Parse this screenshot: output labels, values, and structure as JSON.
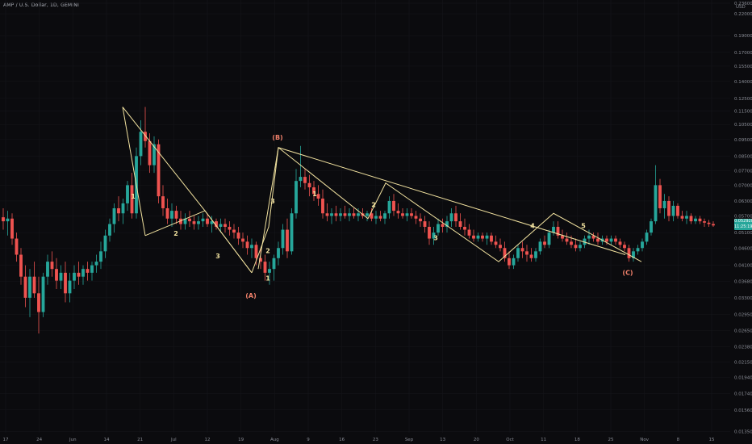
{
  "header": {
    "symbol_line": "AMP / U.S. Dollar, 1D, GEMINI"
  },
  "price_axis": {
    "currency": "USD",
    "current_price": "0.052920",
    "countdown": "11:25:19"
  },
  "colors": {
    "background": "#0b0b0e",
    "up": "#26a69a",
    "down": "#ef5350",
    "wave_line": "#f3e3a0",
    "label_red": "#f0806a",
    "label_white": "#f3e3a0",
    "grid": "#16171c"
  },
  "chart_data": {
    "type": "candlestick",
    "title": "AMP / U.S. Dollar, 1D, GEMINI",
    "y_scale": "log",
    "ylim": [
      0.0134,
      0.236
    ],
    "y_ticks": [
      "0.236000",
      "0.220000",
      "0.190000",
      "0.170000",
      "0.155000",
      "0.140000",
      "0.125000",
      "0.115000",
      "0.105000",
      "0.095000",
      "0.085000",
      "0.077000",
      "0.070000",
      "0.063000",
      "0.057000",
      "0.051000",
      "0.046000",
      "0.041000",
      "0.036800",
      "0.033000",
      "0.029500",
      "0.026500",
      "0.023800",
      "0.021500",
      "0.019400",
      "0.017400",
      "0.015600",
      "0.013500"
    ],
    "x_ticks": [
      "17",
      "24",
      "Jun",
      "14",
      "21",
      "Jul",
      "12",
      "19",
      "Aug",
      "9",
      "16",
      "23",
      "Sep",
      "13",
      "20",
      "Oct",
      "11",
      "18",
      "25",
      "Nov",
      "8",
      "15"
    ],
    "candles": [
      {
        "o": 0.0565,
        "h": 0.06,
        "l": 0.052,
        "c": 0.055
      },
      {
        "o": 0.055,
        "h": 0.059,
        "l": 0.05,
        "c": 0.056
      },
      {
        "o": 0.056,
        "h": 0.058,
        "l": 0.047,
        "c": 0.049
      },
      {
        "o": 0.049,
        "h": 0.051,
        "l": 0.042,
        "c": 0.044
      },
      {
        "o": 0.044,
        "h": 0.046,
        "l": 0.036,
        "c": 0.038
      },
      {
        "o": 0.038,
        "h": 0.041,
        "l": 0.031,
        "c": 0.033
      },
      {
        "o": 0.033,
        "h": 0.04,
        "l": 0.029,
        "c": 0.038
      },
      {
        "o": 0.038,
        "h": 0.042,
        "l": 0.033,
        "c": 0.034
      },
      {
        "o": 0.034,
        "h": 0.038,
        "l": 0.026,
        "c": 0.03
      },
      {
        "o": 0.03,
        "h": 0.039,
        "l": 0.029,
        "c": 0.038
      },
      {
        "o": 0.038,
        "h": 0.044,
        "l": 0.036,
        "c": 0.042
      },
      {
        "o": 0.042,
        "h": 0.045,
        "l": 0.038,
        "c": 0.04
      },
      {
        "o": 0.04,
        "h": 0.043,
        "l": 0.035,
        "c": 0.037
      },
      {
        "o": 0.037,
        "h": 0.041,
        "l": 0.035,
        "c": 0.039
      },
      {
        "o": 0.039,
        "h": 0.042,
        "l": 0.032,
        "c": 0.034
      },
      {
        "o": 0.034,
        "h": 0.039,
        "l": 0.032,
        "c": 0.037
      },
      {
        "o": 0.037,
        "h": 0.041,
        "l": 0.035,
        "c": 0.039
      },
      {
        "o": 0.039,
        "h": 0.042,
        "l": 0.036,
        "c": 0.038
      },
      {
        "o": 0.038,
        "h": 0.041,
        "l": 0.036,
        "c": 0.04
      },
      {
        "o": 0.04,
        "h": 0.042,
        "l": 0.037,
        "c": 0.039
      },
      {
        "o": 0.039,
        "h": 0.042,
        "l": 0.037,
        "c": 0.041
      },
      {
        "o": 0.041,
        "h": 0.044,
        "l": 0.039,
        "c": 0.042
      },
      {
        "o": 0.042,
        "h": 0.048,
        "l": 0.04,
        "c": 0.045
      },
      {
        "o": 0.045,
        "h": 0.052,
        "l": 0.043,
        "c": 0.05
      },
      {
        "o": 0.05,
        "h": 0.056,
        "l": 0.048,
        "c": 0.054
      },
      {
        "o": 0.054,
        "h": 0.062,
        "l": 0.051,
        "c": 0.06
      },
      {
        "o": 0.06,
        "h": 0.065,
        "l": 0.055,
        "c": 0.058
      },
      {
        "o": 0.058,
        "h": 0.064,
        "l": 0.054,
        "c": 0.062
      },
      {
        "o": 0.062,
        "h": 0.072,
        "l": 0.059,
        "c": 0.07
      },
      {
        "o": 0.07,
        "h": 0.076,
        "l": 0.056,
        "c": 0.058
      },
      {
        "o": 0.058,
        "h": 0.09,
        "l": 0.056,
        "c": 0.085
      },
      {
        "o": 0.085,
        "h": 0.108,
        "l": 0.08,
        "c": 0.1
      },
      {
        "o": 0.1,
        "h": 0.118,
        "l": 0.09,
        "c": 0.094
      },
      {
        "o": 0.094,
        "h": 0.099,
        "l": 0.076,
        "c": 0.08
      },
      {
        "o": 0.08,
        "h": 0.097,
        "l": 0.076,
        "c": 0.092
      },
      {
        "o": 0.092,
        "h": 0.095,
        "l": 0.062,
        "c": 0.065
      },
      {
        "o": 0.065,
        "h": 0.07,
        "l": 0.057,
        "c": 0.06
      },
      {
        "o": 0.06,
        "h": 0.064,
        "l": 0.054,
        "c": 0.056
      },
      {
        "o": 0.056,
        "h": 0.062,
        "l": 0.053,
        "c": 0.059
      },
      {
        "o": 0.059,
        "h": 0.061,
        "l": 0.054,
        "c": 0.056
      },
      {
        "o": 0.056,
        "h": 0.059,
        "l": 0.052,
        "c": 0.054
      },
      {
        "o": 0.054,
        "h": 0.058,
        "l": 0.052,
        "c": 0.056
      },
      {
        "o": 0.056,
        "h": 0.059,
        "l": 0.053,
        "c": 0.055
      },
      {
        "o": 0.055,
        "h": 0.057,
        "l": 0.052,
        "c": 0.054
      },
      {
        "o": 0.054,
        "h": 0.057,
        "l": 0.052,
        "c": 0.055
      },
      {
        "o": 0.055,
        "h": 0.058,
        "l": 0.053,
        "c": 0.056
      },
      {
        "o": 0.056,
        "h": 0.058,
        "l": 0.053,
        "c": 0.054
      },
      {
        "o": 0.054,
        "h": 0.057,
        "l": 0.051,
        "c": 0.055
      },
      {
        "o": 0.055,
        "h": 0.056,
        "l": 0.052,
        "c": 0.053
      },
      {
        "o": 0.053,
        "h": 0.056,
        "l": 0.051,
        "c": 0.054
      },
      {
        "o": 0.054,
        "h": 0.056,
        "l": 0.051,
        "c": 0.053
      },
      {
        "o": 0.053,
        "h": 0.055,
        "l": 0.05,
        "c": 0.052
      },
      {
        "o": 0.052,
        "h": 0.054,
        "l": 0.049,
        "c": 0.051
      },
      {
        "o": 0.051,
        "h": 0.053,
        "l": 0.047,
        "c": 0.049
      },
      {
        "o": 0.049,
        "h": 0.051,
        "l": 0.046,
        "c": 0.048
      },
      {
        "o": 0.048,
        "h": 0.05,
        "l": 0.044,
        "c": 0.046
      },
      {
        "o": 0.046,
        "h": 0.049,
        "l": 0.043,
        "c": 0.047
      },
      {
        "o": 0.047,
        "h": 0.048,
        "l": 0.041,
        "c": 0.043
      },
      {
        "o": 0.043,
        "h": 0.046,
        "l": 0.04,
        "c": 0.042
      },
      {
        "o": 0.042,
        "h": 0.044,
        "l": 0.037,
        "c": 0.039
      },
      {
        "o": 0.039,
        "h": 0.042,
        "l": 0.036,
        "c": 0.04
      },
      {
        "o": 0.04,
        "h": 0.044,
        "l": 0.037,
        "c": 0.043
      },
      {
        "o": 0.043,
        "h": 0.048,
        "l": 0.041,
        "c": 0.046
      },
      {
        "o": 0.046,
        "h": 0.054,
        "l": 0.044,
        "c": 0.052
      },
      {
        "o": 0.052,
        "h": 0.056,
        "l": 0.043,
        "c": 0.045
      },
      {
        "o": 0.045,
        "h": 0.06,
        "l": 0.044,
        "c": 0.058
      },
      {
        "o": 0.058,
        "h": 0.078,
        "l": 0.056,
        "c": 0.072
      },
      {
        "o": 0.072,
        "h": 0.091,
        "l": 0.069,
        "c": 0.074
      },
      {
        "o": 0.074,
        "h": 0.078,
        "l": 0.068,
        "c": 0.071
      },
      {
        "o": 0.071,
        "h": 0.075,
        "l": 0.065,
        "c": 0.069
      },
      {
        "o": 0.069,
        "h": 0.072,
        "l": 0.063,
        "c": 0.066
      },
      {
        "o": 0.066,
        "h": 0.07,
        "l": 0.061,
        "c": 0.064
      },
      {
        "o": 0.064,
        "h": 0.068,
        "l": 0.056,
        "c": 0.058
      },
      {
        "o": 0.058,
        "h": 0.062,
        "l": 0.055,
        "c": 0.057
      },
      {
        "o": 0.057,
        "h": 0.06,
        "l": 0.054,
        "c": 0.058
      },
      {
        "o": 0.058,
        "h": 0.061,
        "l": 0.055,
        "c": 0.057
      },
      {
        "o": 0.057,
        "h": 0.06,
        "l": 0.055,
        "c": 0.058
      },
      {
        "o": 0.058,
        "h": 0.061,
        "l": 0.056,
        "c": 0.057
      },
      {
        "o": 0.057,
        "h": 0.06,
        "l": 0.055,
        "c": 0.058
      },
      {
        "o": 0.058,
        "h": 0.06,
        "l": 0.056,
        "c": 0.057
      },
      {
        "o": 0.057,
        "h": 0.06,
        "l": 0.055,
        "c": 0.058
      },
      {
        "o": 0.058,
        "h": 0.06,
        "l": 0.056,
        "c": 0.057
      },
      {
        "o": 0.057,
        "h": 0.059,
        "l": 0.055,
        "c": 0.058
      },
      {
        "o": 0.058,
        "h": 0.06,
        "l": 0.055,
        "c": 0.056
      },
      {
        "o": 0.056,
        "h": 0.059,
        "l": 0.054,
        "c": 0.057
      },
      {
        "o": 0.057,
        "h": 0.059,
        "l": 0.055,
        "c": 0.056
      },
      {
        "o": 0.056,
        "h": 0.059,
        "l": 0.054,
        "c": 0.058
      },
      {
        "o": 0.058,
        "h": 0.065,
        "l": 0.056,
        "c": 0.063
      },
      {
        "o": 0.063,
        "h": 0.066,
        "l": 0.057,
        "c": 0.059
      },
      {
        "o": 0.059,
        "h": 0.062,
        "l": 0.056,
        "c": 0.058
      },
      {
        "o": 0.058,
        "h": 0.06,
        "l": 0.056,
        "c": 0.057
      },
      {
        "o": 0.057,
        "h": 0.06,
        "l": 0.055,
        "c": 0.058
      },
      {
        "o": 0.058,
        "h": 0.06,
        "l": 0.056,
        "c": 0.057
      },
      {
        "o": 0.057,
        "h": 0.059,
        "l": 0.054,
        "c": 0.056
      },
      {
        "o": 0.056,
        "h": 0.058,
        "l": 0.053,
        "c": 0.055
      },
      {
        "o": 0.055,
        "h": 0.057,
        "l": 0.051,
        "c": 0.053
      },
      {
        "o": 0.053,
        "h": 0.055,
        "l": 0.047,
        "c": 0.049
      },
      {
        "o": 0.049,
        "h": 0.053,
        "l": 0.047,
        "c": 0.051
      },
      {
        "o": 0.051,
        "h": 0.056,
        "l": 0.05,
        "c": 0.054
      },
      {
        "o": 0.054,
        "h": 0.056,
        "l": 0.051,
        "c": 0.053
      },
      {
        "o": 0.053,
        "h": 0.057,
        "l": 0.051,
        "c": 0.055
      },
      {
        "o": 0.055,
        "h": 0.06,
        "l": 0.053,
        "c": 0.058
      },
      {
        "o": 0.058,
        "h": 0.061,
        "l": 0.053,
        "c": 0.055
      },
      {
        "o": 0.055,
        "h": 0.058,
        "l": 0.052,
        "c": 0.053
      },
      {
        "o": 0.053,
        "h": 0.056,
        "l": 0.05,
        "c": 0.052
      },
      {
        "o": 0.052,
        "h": 0.054,
        "l": 0.049,
        "c": 0.05
      },
      {
        "o": 0.05,
        "h": 0.052,
        "l": 0.048,
        "c": 0.049
      },
      {
        "o": 0.049,
        "h": 0.051,
        "l": 0.048,
        "c": 0.05
      },
      {
        "o": 0.05,
        "h": 0.051,
        "l": 0.048,
        "c": 0.049
      },
      {
        "o": 0.049,
        "h": 0.051,
        "l": 0.047,
        "c": 0.05
      },
      {
        "o": 0.05,
        "h": 0.051,
        "l": 0.047,
        "c": 0.048
      },
      {
        "o": 0.048,
        "h": 0.05,
        "l": 0.046,
        "c": 0.047
      },
      {
        "o": 0.047,
        "h": 0.049,
        "l": 0.045,
        "c": 0.046
      },
      {
        "o": 0.046,
        "h": 0.048,
        "l": 0.042,
        "c": 0.043
      },
      {
        "o": 0.043,
        "h": 0.045,
        "l": 0.04,
        "c": 0.041
      },
      {
        "o": 0.041,
        "h": 0.044,
        "l": 0.04,
        "c": 0.043
      },
      {
        "o": 0.043,
        "h": 0.047,
        "l": 0.042,
        "c": 0.046
      },
      {
        "o": 0.046,
        "h": 0.048,
        "l": 0.043,
        "c": 0.045
      },
      {
        "o": 0.045,
        "h": 0.047,
        "l": 0.042,
        "c": 0.044
      },
      {
        "o": 0.044,
        "h": 0.046,
        "l": 0.042,
        "c": 0.043
      },
      {
        "o": 0.043,
        "h": 0.046,
        "l": 0.042,
        "c": 0.045
      },
      {
        "o": 0.045,
        "h": 0.049,
        "l": 0.044,
        "c": 0.048
      },
      {
        "o": 0.048,
        "h": 0.05,
        "l": 0.046,
        "c": 0.047
      },
      {
        "o": 0.047,
        "h": 0.052,
        "l": 0.046,
        "c": 0.051
      },
      {
        "o": 0.051,
        "h": 0.055,
        "l": 0.05,
        "c": 0.053
      },
      {
        "o": 0.053,
        "h": 0.055,
        "l": 0.049,
        "c": 0.05
      },
      {
        "o": 0.05,
        "h": 0.052,
        "l": 0.048,
        "c": 0.049
      },
      {
        "o": 0.049,
        "h": 0.051,
        "l": 0.047,
        "c": 0.048
      },
      {
        "o": 0.048,
        "h": 0.05,
        "l": 0.046,
        "c": 0.047
      },
      {
        "o": 0.047,
        "h": 0.049,
        "l": 0.045,
        "c": 0.046
      },
      {
        "o": 0.046,
        "h": 0.048,
        "l": 0.045,
        "c": 0.047
      },
      {
        "o": 0.047,
        "h": 0.05,
        "l": 0.046,
        "c": 0.049
      },
      {
        "o": 0.049,
        "h": 0.052,
        "l": 0.047,
        "c": 0.05
      },
      {
        "o": 0.05,
        "h": 0.051,
        "l": 0.048,
        "c": 0.049
      },
      {
        "o": 0.049,
        "h": 0.051,
        "l": 0.047,
        "c": 0.048
      },
      {
        "o": 0.048,
        "h": 0.05,
        "l": 0.047,
        "c": 0.049
      },
      {
        "o": 0.049,
        "h": 0.05,
        "l": 0.047,
        "c": 0.048
      },
      {
        "o": 0.048,
        "h": 0.05,
        "l": 0.047,
        "c": 0.049
      },
      {
        "o": 0.049,
        "h": 0.05,
        "l": 0.047,
        "c": 0.048
      },
      {
        "o": 0.048,
        "h": 0.049,
        "l": 0.046,
        "c": 0.047
      },
      {
        "o": 0.047,
        "h": 0.048,
        "l": 0.045,
        "c": 0.046
      },
      {
        "o": 0.046,
        "h": 0.047,
        "l": 0.042,
        "c": 0.043
      },
      {
        "o": 0.043,
        "h": 0.046,
        "l": 0.042,
        "c": 0.045
      },
      {
        "o": 0.045,
        "h": 0.047,
        "l": 0.044,
        "c": 0.046
      },
      {
        "o": 0.046,
        "h": 0.049,
        "l": 0.045,
        "c": 0.048
      },
      {
        "o": 0.048,
        "h": 0.052,
        "l": 0.047,
        "c": 0.051
      },
      {
        "o": 0.051,
        "h": 0.056,
        "l": 0.05,
        "c": 0.055
      },
      {
        "o": 0.055,
        "h": 0.08,
        "l": 0.054,
        "c": 0.07
      },
      {
        "o": 0.07,
        "h": 0.073,
        "l": 0.058,
        "c": 0.06
      },
      {
        "o": 0.06,
        "h": 0.066,
        "l": 0.056,
        "c": 0.063
      },
      {
        "o": 0.063,
        "h": 0.065,
        "l": 0.055,
        "c": 0.057
      },
      {
        "o": 0.057,
        "h": 0.063,
        "l": 0.055,
        "c": 0.061
      },
      {
        "o": 0.061,
        "h": 0.062,
        "l": 0.056,
        "c": 0.057
      },
      {
        "o": 0.057,
        "h": 0.059,
        "l": 0.055,
        "c": 0.056
      },
      {
        "o": 0.056,
        "h": 0.059,
        "l": 0.054,
        "c": 0.057
      },
      {
        "o": 0.057,
        "h": 0.058,
        "l": 0.054,
        "c": 0.055
      },
      {
        "o": 0.055,
        "h": 0.057,
        "l": 0.054,
        "c": 0.056
      },
      {
        "o": 0.056,
        "h": 0.057,
        "l": 0.054,
        "c": 0.055
      },
      {
        "o": 0.055,
        "h": 0.056,
        "l": 0.053,
        "c": 0.0545
      },
      {
        "o": 0.0545,
        "h": 0.0555,
        "l": 0.053,
        "c": 0.054
      },
      {
        "o": 0.054,
        "h": 0.055,
        "l": 0.053,
        "c": 0.0535
      }
    ],
    "wave_lines": [
      {
        "name": "impulse-1",
        "points": [
          [
            152,
            0.118
          ],
          [
            180,
            0.05
          ]
        ]
      },
      {
        "name": "main-decline",
        "points": [
          [
            152,
            0.118
          ],
          [
            254,
            0.059
          ],
          [
            312,
            0.039
          ]
        ]
      },
      {
        "name": "subwave-2-3",
        "points": [
          [
            180,
            0.05
          ],
          [
            254,
            0.059
          ],
          [
            312,
            0.039
          ]
        ]
      },
      {
        "name": "rise-to-B",
        "points": [
          [
            312,
            0.039
          ],
          [
            333,
            0.053
          ],
          [
            345,
            0.09
          ]
        ]
      },
      {
        "name": "corrective",
        "points": [
          [
            320,
            0.04
          ],
          [
            345,
            0.09
          ],
          [
            456,
            0.056
          ],
          [
            478,
            0.071
          ],
          [
            618,
            0.042
          ],
          [
            686,
            0.058
          ],
          [
            795,
            0.042
          ]
        ]
      },
      {
        "name": "b-c-trend",
        "points": [
          [
            345,
            0.09
          ],
          [
            775,
            0.044
          ]
        ]
      }
    ],
    "wave_labels": [
      {
        "text": "1",
        "x": 165,
        "y": 0.064,
        "color": "label_white"
      },
      {
        "text": "2",
        "x": 218,
        "y": 0.05,
        "color": "label_white"
      },
      {
        "text": "3",
        "x": 270,
        "y": 0.043,
        "color": "label_white"
      },
      {
        "text": "(A)",
        "x": 311,
        "y": 0.033,
        "color": "label_red"
      },
      {
        "text": "1",
        "x": 332,
        "y": 0.037,
        "color": "label_white"
      },
      {
        "text": "2",
        "x": 332,
        "y": 0.0445,
        "color": "label_white"
      },
      {
        "text": "3",
        "x": 338,
        "y": 0.062,
        "color": "label_white"
      },
      {
        "text": "(B)",
        "x": 344,
        "y": 0.095,
        "color": "label_red"
      },
      {
        "text": "1",
        "x": 390,
        "y": 0.065,
        "color": "label_white"
      },
      {
        "text": "2",
        "x": 463,
        "y": 0.0605,
        "color": "label_white"
      },
      {
        "text": "3",
        "x": 540,
        "y": 0.0485,
        "color": "label_white"
      },
      {
        "text": "4",
        "x": 660,
        "y": 0.0525,
        "color": "label_white"
      },
      {
        "text": "5",
        "x": 723,
        "y": 0.0525,
        "color": "label_white"
      },
      {
        "text": "(C)",
        "x": 778,
        "y": 0.0385,
        "color": "label_red"
      }
    ]
  }
}
